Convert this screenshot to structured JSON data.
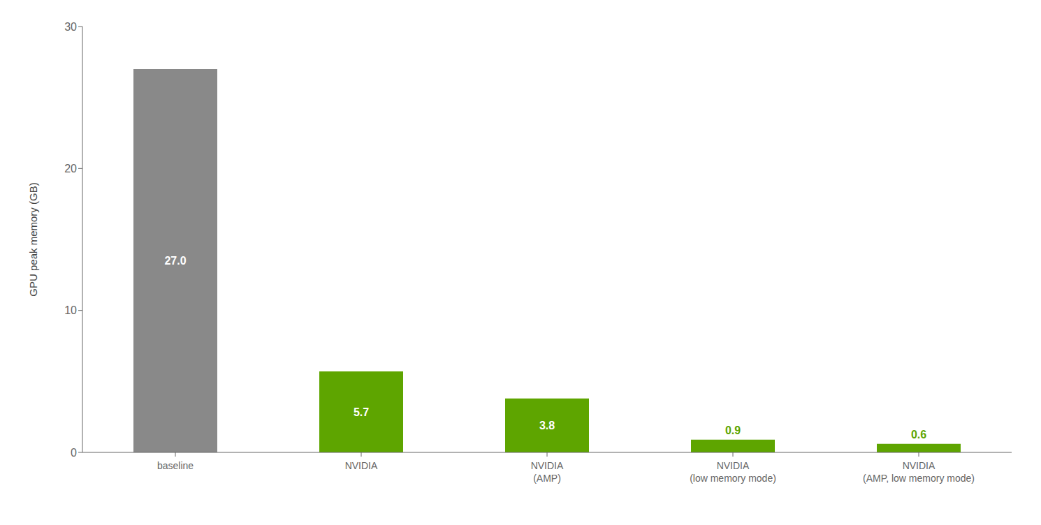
{
  "chart_data": {
    "type": "bar",
    "categories": [
      "baseline",
      "NVIDIA",
      "NVIDIA\n(AMP)",
      "NVIDIA\n(low memory mode)",
      "NVIDIA\n(AMP, low memory mode)"
    ],
    "values": [
      27.0,
      5.7,
      3.8,
      0.9,
      0.6
    ],
    "value_labels": [
      "27.0",
      "5.7",
      "3.8",
      "0.9",
      "0.6"
    ],
    "data_labels": true,
    "colors": [
      "#898989",
      "#5ea500",
      "#5ea500",
      "#5ea500",
      "#5ea500"
    ],
    "ylabel": "GPU peak memory (GB)",
    "ylim": [
      0,
      30
    ],
    "yticks": [
      0,
      10,
      20,
      30
    ],
    "grid": false
  }
}
